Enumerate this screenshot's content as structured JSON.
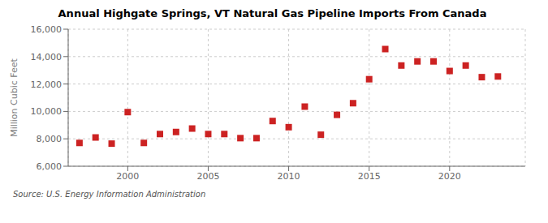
{
  "chart_data": {
    "type": "scatter",
    "title": "Annual Highgate Springs, VT Natural Gas Pipeline Imports From Canada",
    "ylabel": "Million Cubic Feet",
    "annotations": [
      "Source: U.S. Energy Information Administration"
    ],
    "x": [
      1997,
      1998,
      1999,
      2000,
      2001,
      2002,
      2003,
      2004,
      2005,
      2006,
      2007,
      2008,
      2009,
      2010,
      2011,
      2012,
      2013,
      2014,
      2015,
      2016,
      2017,
      2018,
      2019,
      2020,
      2021,
      2022,
      2023
    ],
    "values": [
      7700,
      8100,
      7650,
      9950,
      7700,
      8350,
      8500,
      8750,
      8350,
      8350,
      8050,
      8050,
      9300,
      8850,
      10350,
      8300,
      9750,
      10600,
      12350,
      14550,
      13350,
      13650,
      13650,
      12950,
      13350,
      12500,
      12550
    ],
    "color": "#cc2222",
    "marker": "square",
    "xlim": [
      1996.3,
      2024.7
    ],
    "xticks": [
      2000,
      2005,
      2010,
      2015,
      2020
    ],
    "ylim": [
      6000,
      16000
    ],
    "yticks": [
      {
        "value": 6000,
        "label": "6,000"
      },
      {
        "value": 8000,
        "label": "8,000"
      },
      {
        "value": 10000,
        "label": "10,000"
      },
      {
        "value": 12000,
        "label": "12,000"
      },
      {
        "value": 14000,
        "label": "14,000"
      },
      {
        "value": 16000,
        "label": "16,000"
      }
    ],
    "grid": true
  }
}
